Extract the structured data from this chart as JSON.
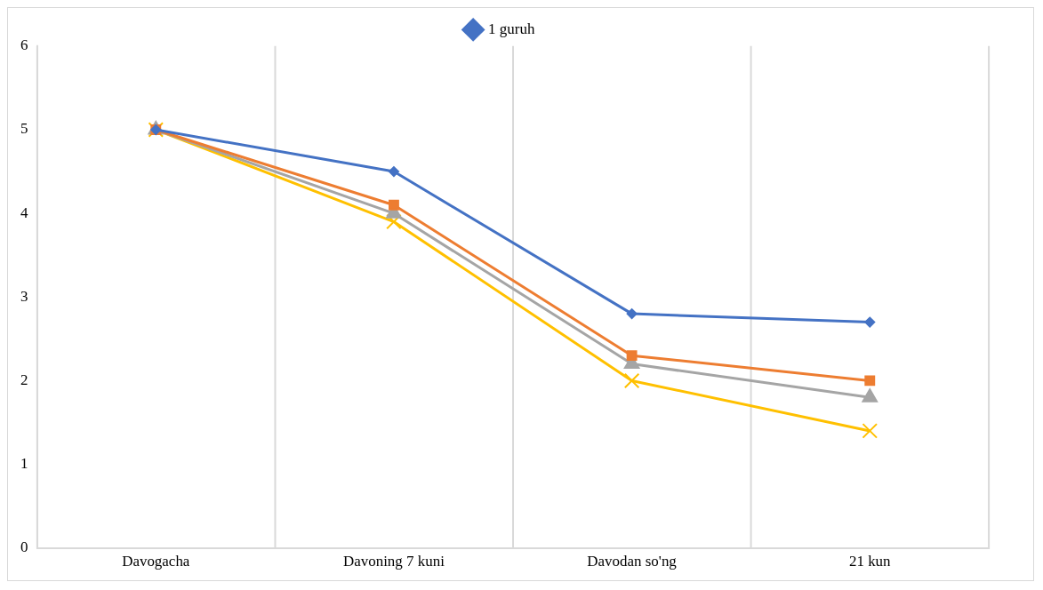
{
  "chart_data": {
    "type": "line",
    "categories": [
      "Davogacha",
      "Davoning 7 kuni",
      "Davodan so'ng",
      "21 kun"
    ],
    "series": [
      {
        "name": "1 guruh",
        "color": "#4472c4",
        "marker": "diamond",
        "values": [
          5,
          4.5,
          2.8,
          2.7
        ]
      },
      {
        "color": "#ed7d31",
        "marker": "square",
        "values": [
          5,
          4.1,
          2.3,
          2.0
        ]
      },
      {
        "color": "#a5a5a5",
        "marker": "triangle",
        "values": [
          5,
          4.0,
          2.2,
          1.8
        ]
      },
      {
        "color": "#ffc000",
        "marker": "cross",
        "values": [
          5,
          3.9,
          2.0,
          1.4
        ]
      }
    ],
    "ylim": [
      0,
      6
    ],
    "yticks": [
      0,
      1,
      2,
      3,
      4,
      5,
      6
    ],
    "grid": "x",
    "legend": "top",
    "line_style": "solid"
  }
}
